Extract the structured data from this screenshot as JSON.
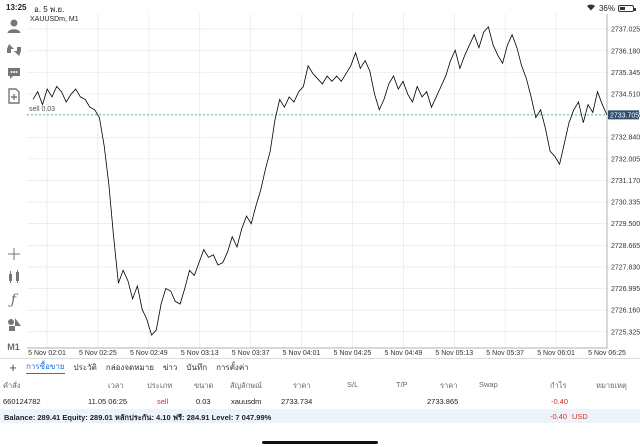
{
  "status_bar": {
    "time": "13:25",
    "date": "อ. 5 พ.ย.",
    "battery": "36%"
  },
  "chart": {
    "symbol": "XAUUSDm, M1",
    "ask_label": "sell 0.03",
    "current_price": "2733.705",
    "ytick_labels": [
      "2737.025",
      "2736.180",
      "2735.345",
      "2734.510",
      "2733.705",
      "2732.840",
      "2732.005",
      "2731.170",
      "2730.335",
      "2729.500",
      "2728.665",
      "2727.830",
      "2726.995",
      "2726.160",
      "2725.325"
    ],
    "xtick_labels": [
      "5 Nov 02:01",
      "5 Nov 02:25",
      "5 Nov 02:49",
      "5 Nov 03:13",
      "5 Nov 03:37",
      "5 Nov 04:01",
      "5 Nov 04:25",
      "5 Nov 04:49",
      "5 Nov 05:13",
      "5 Nov 05:37",
      "5 Nov 06:01",
      "5 Nov 06:25"
    ]
  },
  "chart_data": {
    "type": "line",
    "title": "XAUUSDm, M1",
    "xlabel": "",
    "ylabel": "",
    "ylim": [
      2724.7,
      2737.6
    ],
    "series": [
      {
        "values": [
          2734.3,
          2734.6,
          2734.1,
          2734.7,
          2734.4,
          2734.8,
          2734.6,
          2734.2,
          2734.5,
          2734.7,
          2734.4,
          2734.3,
          2734.0,
          2733.9,
          2733.6,
          2732.5,
          2731.0,
          2729.0,
          2727.2,
          2727.7,
          2727.3,
          2726.6,
          2727.1,
          2726.2,
          2725.8,
          2725.2,
          2725.4,
          2726.4,
          2727.0,
          2726.9,
          2726.5,
          2726.4,
          2727.0,
          2727.7,
          2727.5,
          2728.0,
          2728.5,
          2728.2,
          2728.3,
          2727.9,
          2728.0,
          2728.4,
          2729.0,
          2728.6,
          2729.3,
          2729.8,
          2729.5,
          2730.2,
          2730.8,
          2731.6,
          2732.3,
          2733.5,
          2734.3,
          2734.0,
          2734.4,
          2734.2,
          2734.6,
          2734.8,
          2735.6,
          2735.3,
          2735.1,
          2734.9,
          2735.2,
          2735.0,
          2735.2,
          2735.0,
          2735.3,
          2735.6,
          2736.1,
          2735.5,
          2735.8,
          2735.4,
          2734.5,
          2733.9,
          2734.3,
          2734.9,
          2735.2,
          2734.7,
          2735.0,
          2734.5,
          2734.2,
          2734.8,
          2734.4,
          2734.6,
          2734.0,
          2734.4,
          2734.8,
          2735.2,
          2735.8,
          2736.2,
          2735.5,
          2736.0,
          2736.4,
          2736.8,
          2736.3,
          2736.9,
          2737.1,
          2736.4,
          2736.0,
          2735.7,
          2736.4,
          2736.8,
          2736.3,
          2735.6,
          2735.1,
          2734.4,
          2733.6,
          2733.9,
          2733.2,
          2732.3,
          2732.1,
          2731.8,
          2732.6,
          2733.4,
          2733.9,
          2734.2,
          2733.4,
          2734.1,
          2733.8,
          2734.6,
          2734.1,
          2733.7
        ],
        "color": "#000000"
      }
    ],
    "x_range": [
      "5 Nov 01:57",
      "5 Nov 06:25"
    ],
    "horizontal_line": {
      "value": 2733.705,
      "color": "#2a8a8a"
    },
    "grid": true
  },
  "terminal": {
    "add_label": "+",
    "tabs": [
      "การซื้อขาย",
      "ประวัติ",
      "กล่องจดหมาย",
      "ข่าว",
      "บันทึก",
      "การตั้งค่า"
    ],
    "headers": [
      "คำสั่ง",
      "เวลา",
      "ประเภท",
      "ขนาด",
      "สัญลักษณ์",
      "ราคา",
      "S/L",
      "T/P",
      "ราคา",
      "Swap",
      "กำไร",
      "หมายเหตุ"
    ],
    "order": {
      "ticket": "660124782",
      "time": "11.05 06:25",
      "type": "sell",
      "volume": "0.03",
      "symbol": "xauusdm",
      "open_price": "2733.734",
      "current_price": "2733.865",
      "profit": "-0.40"
    },
    "balance_text": "Balance: 289.41 Equity: 289.01 หลักประกัน: 4.10 ฟรี: 284.91 Level: 7 047.99%",
    "balance_profit": "-0.40",
    "currency": "USD",
    "colors": {
      "loss": "#d93025",
      "accent": "#1a73e8"
    }
  }
}
